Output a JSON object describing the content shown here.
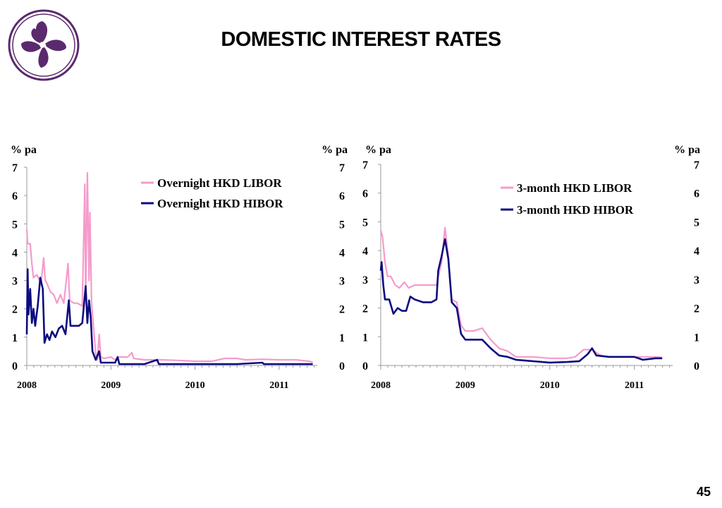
{
  "slide": {
    "title": "DOMESTIC INTEREST RATES",
    "page_number": "45"
  },
  "colors": {
    "libor": "#F59BCB",
    "hibor": "#0C0C80",
    "logo": "#5B2A6E"
  },
  "icons": {
    "logo": "bauhinia-flower-logo-icon"
  },
  "chart_data": [
    {
      "type": "line",
      "left_axis_label": "% pa",
      "right_axis_label": "% pa",
      "ylim": [
        0,
        7
      ],
      "yticks": [
        "0",
        "1",
        "2",
        "3",
        "4",
        "5",
        "6",
        "7"
      ],
      "xlim": [
        2008.0,
        2011.42
      ],
      "xticks": [
        {
          "value": 2008,
          "label": "2008"
        },
        {
          "value": 2009,
          "label": "2009"
        },
        {
          "value": 2010,
          "label": "2010"
        },
        {
          "value": 2011,
          "label": "2011"
        }
      ],
      "legend_position": "top-right",
      "series": [
        {
          "name": "Overnight HKD LIBOR",
          "color": "#F59BCB",
          "points": [
            [
              2008.0,
              4.8
            ],
            [
              2008.01,
              4.3
            ],
            [
              2008.04,
              4.3
            ],
            [
              2008.06,
              3.6
            ],
            [
              2008.08,
              3.1
            ],
            [
              2008.12,
              3.2
            ],
            [
              2008.17,
              2.9
            ],
            [
              2008.2,
              3.8
            ],
            [
              2008.22,
              3.0
            ],
            [
              2008.24,
              2.9
            ],
            [
              2008.28,
              2.6
            ],
            [
              2008.32,
              2.5
            ],
            [
              2008.36,
              2.2
            ],
            [
              2008.4,
              2.5
            ],
            [
              2008.44,
              2.2
            ],
            [
              2008.49,
              3.6
            ],
            [
              2008.51,
              2.3
            ],
            [
              2008.56,
              2.2
            ],
            [
              2008.6,
              2.2
            ],
            [
              2008.66,
              2.1
            ],
            [
              2008.69,
              6.4
            ],
            [
              2008.7,
              2.3
            ],
            [
              2008.72,
              6.8
            ],
            [
              2008.74,
              3.0
            ],
            [
              2008.75,
              5.4
            ],
            [
              2008.77,
              2.2
            ],
            [
              2008.79,
              1.5
            ],
            [
              2008.82,
              0.4
            ],
            [
              2008.84,
              0.2
            ],
            [
              2008.86,
              1.1
            ],
            [
              2008.88,
              0.3
            ],
            [
              2008.92,
              0.25
            ],
            [
              2009.0,
              0.3
            ],
            [
              2009.05,
              0.2
            ],
            [
              2009.1,
              0.3
            ],
            [
              2009.2,
              0.3
            ],
            [
              2009.25,
              0.45
            ],
            [
              2009.27,
              0.25
            ],
            [
              2009.4,
              0.2
            ],
            [
              2009.6,
              0.2
            ],
            [
              2009.8,
              0.18
            ],
            [
              2010.0,
              0.15
            ],
            [
              2010.2,
              0.15
            ],
            [
              2010.35,
              0.25
            ],
            [
              2010.5,
              0.25
            ],
            [
              2010.6,
              0.2
            ],
            [
              2010.8,
              0.22
            ],
            [
              2011.0,
              0.2
            ],
            [
              2011.2,
              0.2
            ],
            [
              2011.35,
              0.15
            ],
            [
              2011.4,
              0.12
            ]
          ]
        },
        {
          "name": "Overnight HKD HIBOR",
          "color": "#0C0C80",
          "points": [
            [
              2008.0,
              1.1
            ],
            [
              2008.01,
              3.4
            ],
            [
              2008.02,
              1.8
            ],
            [
              2008.04,
              2.7
            ],
            [
              2008.06,
              1.5
            ],
            [
              2008.08,
              2.0
            ],
            [
              2008.1,
              1.4
            ],
            [
              2008.13,
              2.1
            ],
            [
              2008.16,
              3.1
            ],
            [
              2008.19,
              2.7
            ],
            [
              2008.21,
              0.8
            ],
            [
              2008.24,
              1.1
            ],
            [
              2008.27,
              0.9
            ],
            [
              2008.3,
              1.2
            ],
            [
              2008.34,
              1.0
            ],
            [
              2008.38,
              1.3
            ],
            [
              2008.42,
              1.4
            ],
            [
              2008.46,
              1.1
            ],
            [
              2008.5,
              2.3
            ],
            [
              2008.52,
              1.4
            ],
            [
              2008.56,
              1.4
            ],
            [
              2008.62,
              1.4
            ],
            [
              2008.66,
              1.5
            ],
            [
              2008.7,
              2.8
            ],
            [
              2008.72,
              1.5
            ],
            [
              2008.74,
              2.3
            ],
            [
              2008.76,
              1.7
            ],
            [
              2008.78,
              0.5
            ],
            [
              2008.82,
              0.2
            ],
            [
              2008.86,
              0.5
            ],
            [
              2008.88,
              0.1
            ],
            [
              2008.95,
              0.1
            ],
            [
              2009.05,
              0.1
            ],
            [
              2009.08,
              0.3
            ],
            [
              2009.1,
              0.05
            ],
            [
              2009.2,
              0.05
            ],
            [
              2009.4,
              0.05
            ],
            [
              2009.55,
              0.2
            ],
            [
              2009.57,
              0.05
            ],
            [
              2009.7,
              0.05
            ],
            [
              2009.9,
              0.05
            ],
            [
              2010.2,
              0.05
            ],
            [
              2010.5,
              0.05
            ],
            [
              2010.8,
              0.1
            ],
            [
              2010.82,
              0.05
            ],
            [
              2011.0,
              0.05
            ],
            [
              2011.2,
              0.05
            ],
            [
              2011.4,
              0.05
            ]
          ]
        }
      ]
    },
    {
      "type": "line",
      "left_axis_label": "% pa",
      "right_axis_label": "% pa",
      "ylim": [
        0,
        7
      ],
      "yticks": [
        "0",
        "1",
        "2",
        "3",
        "4",
        "5",
        "6",
        "7"
      ],
      "xlim": [
        2008.0,
        2011.42
      ],
      "xticks": [
        {
          "value": 2008,
          "label": "2008"
        },
        {
          "value": 2009,
          "label": "2009"
        },
        {
          "value": 2010,
          "label": "2010"
        },
        {
          "value": 2011,
          "label": "2011"
        }
      ],
      "legend_position": "top-right",
      "series": [
        {
          "name": "3-month HKD LIBOR",
          "color": "#F59BCB",
          "points": [
            [
              2008.0,
              4.7
            ],
            [
              2008.02,
              4.5
            ],
            [
              2008.05,
              3.6
            ],
            [
              2008.08,
              3.1
            ],
            [
              2008.12,
              3.1
            ],
            [
              2008.17,
              2.8
            ],
            [
              2008.22,
              2.7
            ],
            [
              2008.28,
              2.9
            ],
            [
              2008.33,
              2.7
            ],
            [
              2008.4,
              2.8
            ],
            [
              2008.5,
              2.8
            ],
            [
              2008.6,
              2.8
            ],
            [
              2008.66,
              2.8
            ],
            [
              2008.72,
              3.6
            ],
            [
              2008.76,
              4.8
            ],
            [
              2008.8,
              3.8
            ],
            [
              2008.84,
              2.3
            ],
            [
              2008.9,
              2.2
            ],
            [
              2008.95,
              1.4
            ],
            [
              2009.0,
              1.2
            ],
            [
              2009.1,
              1.2
            ],
            [
              2009.2,
              1.3
            ],
            [
              2009.3,
              0.9
            ],
            [
              2009.4,
              0.6
            ],
            [
              2009.5,
              0.5
            ],
            [
              2009.6,
              0.3
            ],
            [
              2009.8,
              0.3
            ],
            [
              2010.0,
              0.25
            ],
            [
              2010.2,
              0.25
            ],
            [
              2010.3,
              0.3
            ],
            [
              2010.4,
              0.55
            ],
            [
              2010.5,
              0.55
            ],
            [
              2010.6,
              0.35
            ],
            [
              2010.7,
              0.3
            ],
            [
              2010.85,
              0.3
            ],
            [
              2011.0,
              0.3
            ],
            [
              2011.1,
              0.3
            ],
            [
              2011.25,
              0.3
            ],
            [
              2011.33,
              0.28
            ]
          ]
        },
        {
          "name": "3-month HKD HIBOR",
          "color": "#0C0C80",
          "points": [
            [
              2008.0,
              3.3
            ],
            [
              2008.01,
              3.6
            ],
            [
              2008.03,
              2.8
            ],
            [
              2008.05,
              2.3
            ],
            [
              2008.1,
              2.3
            ],
            [
              2008.15,
              1.8
            ],
            [
              2008.2,
              2.0
            ],
            [
              2008.25,
              1.9
            ],
            [
              2008.3,
              1.9
            ],
            [
              2008.35,
              2.4
            ],
            [
              2008.4,
              2.3
            ],
            [
              2008.5,
              2.2
            ],
            [
              2008.6,
              2.2
            ],
            [
              2008.66,
              2.3
            ],
            [
              2008.68,
              3.3
            ],
            [
              2008.72,
              3.8
            ],
            [
              2008.76,
              4.4
            ],
            [
              2008.8,
              3.7
            ],
            [
              2008.84,
              2.2
            ],
            [
              2008.9,
              2.0
            ],
            [
              2008.95,
              1.1
            ],
            [
              2009.0,
              0.9
            ],
            [
              2009.1,
              0.9
            ],
            [
              2009.2,
              0.9
            ],
            [
              2009.3,
              0.6
            ],
            [
              2009.4,
              0.35
            ],
            [
              2009.5,
              0.3
            ],
            [
              2009.6,
              0.2
            ],
            [
              2009.8,
              0.15
            ],
            [
              2010.0,
              0.1
            ],
            [
              2010.2,
              0.12
            ],
            [
              2010.35,
              0.15
            ],
            [
              2010.45,
              0.4
            ],
            [
              2010.5,
              0.6
            ],
            [
              2010.55,
              0.35
            ],
            [
              2010.7,
              0.3
            ],
            [
              2010.85,
              0.3
            ],
            [
              2011.0,
              0.3
            ],
            [
              2011.1,
              0.2
            ],
            [
              2011.25,
              0.25
            ],
            [
              2011.33,
              0.25
            ]
          ]
        }
      ]
    }
  ]
}
